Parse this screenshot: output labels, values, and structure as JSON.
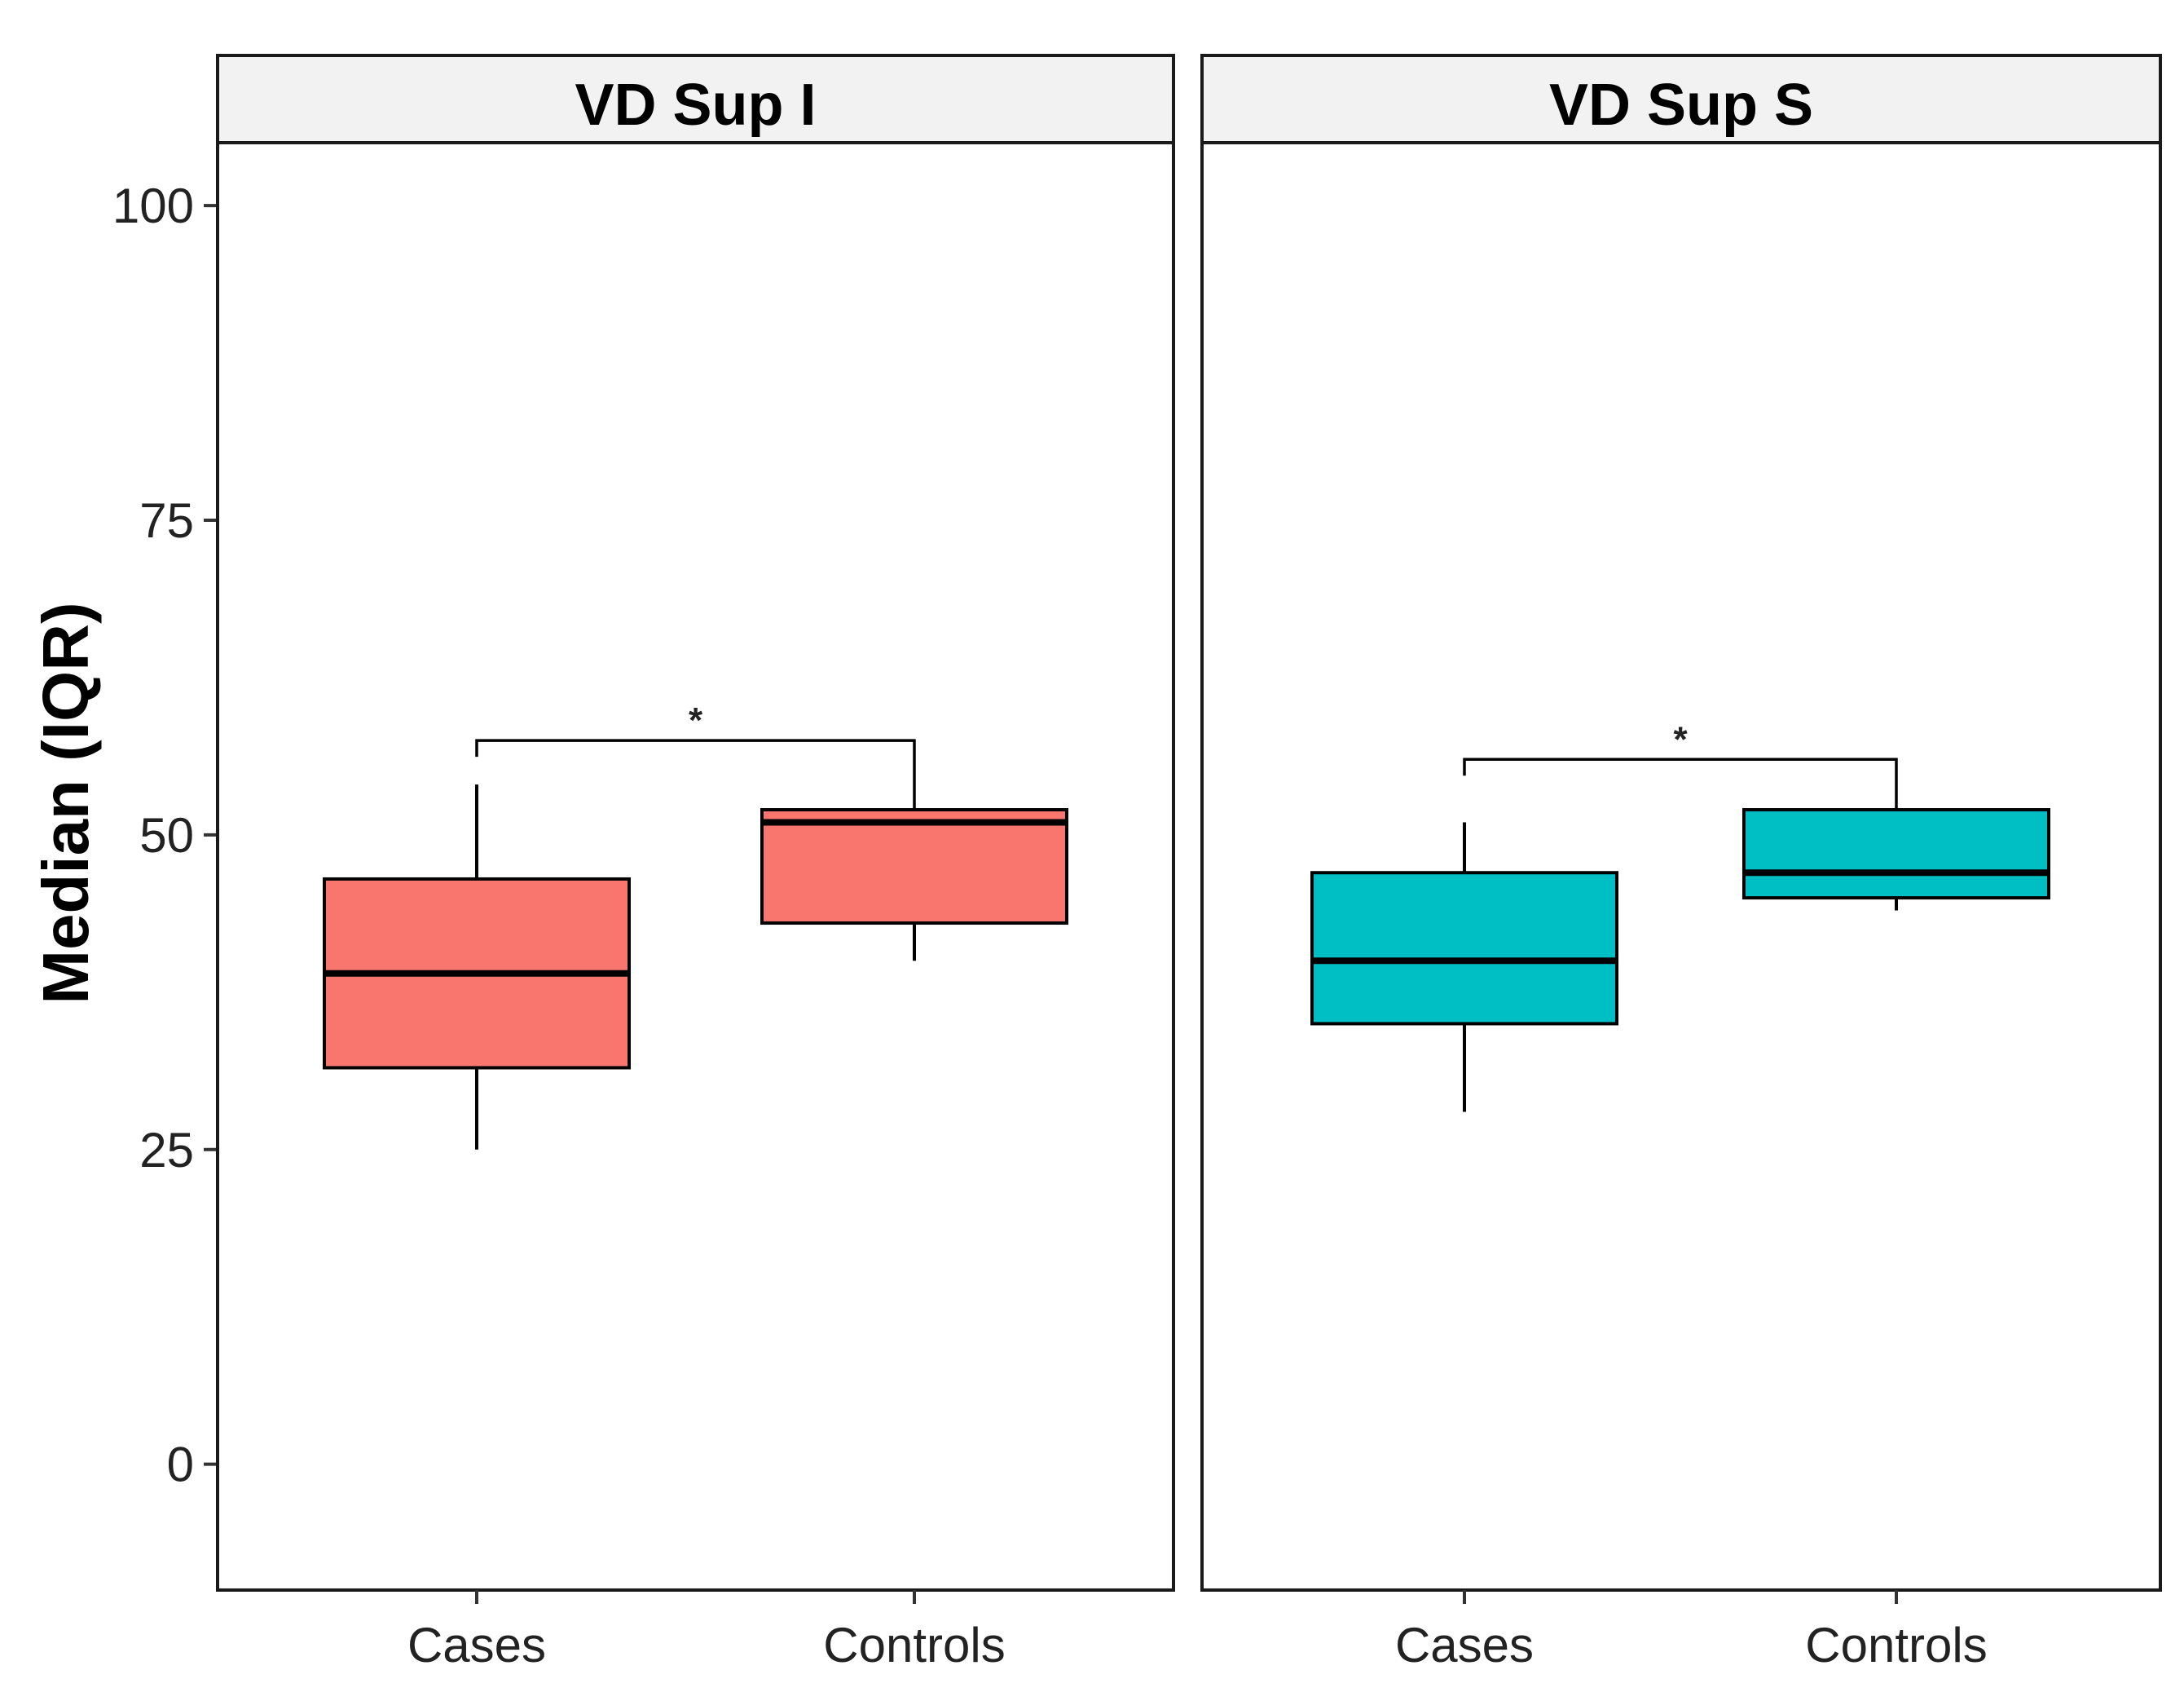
{
  "chart_data": {
    "type": "boxplot",
    "ylabel": "Median (IQR)",
    "ylim": [
      -10,
      105
    ],
    "yticks": [
      0,
      25,
      50,
      75,
      100
    ],
    "categories": [
      "Cases",
      "Controls"
    ],
    "panels": [
      {
        "title": "VD Sup I",
        "color": "#F8766D",
        "boxes": [
          {
            "category": "Cases",
            "min": 25,
            "q1": 31.5,
            "median": 39,
            "q3": 46.5,
            "max": 54
          },
          {
            "category": "Controls",
            "min": 40,
            "q1": 43,
            "median": 51,
            "q3": 52,
            "max": 52
          }
        ],
        "significance": {
          "label": "*",
          "y": 57.5,
          "from": "Cases",
          "to": "Controls"
        }
      },
      {
        "title": "VD Sup S",
        "color": "#00BFC4",
        "boxes": [
          {
            "category": "Cases",
            "min": 28,
            "q1": 35,
            "median": 40,
            "q3": 47,
            "max": 51
          },
          {
            "category": "Controls",
            "min": 44,
            "q1": 45,
            "median": 47,
            "q3": 52,
            "max": 52
          }
        ],
        "significance": {
          "label": "*",
          "y": 56,
          "from": "Cases",
          "to": "Controls"
        }
      }
    ]
  }
}
